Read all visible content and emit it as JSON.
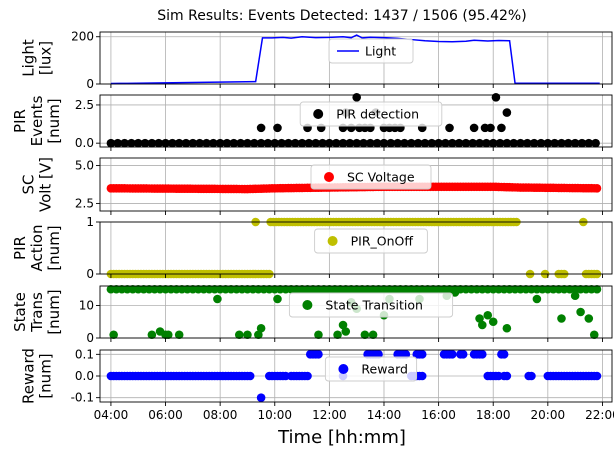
{
  "figure": {
    "title": "Sim Results: Events Detected: 1437 / 1506 (95.42%)",
    "xlabel": "Time [hh:mm]"
  },
  "chart_data": [
    {
      "type": "line",
      "ylabel": [
        "Light",
        "[lux]"
      ],
      "ylim": [
        0,
        220
      ],
      "yticks": [
        0,
        200
      ],
      "xlim": [
        3.6,
        22.35
      ],
      "grid": true,
      "legend": "top-center",
      "series": [
        {
          "name": "Light",
          "color": "#0000ff",
          "x": [
            4.0,
            9.3,
            9.55,
            9.9,
            10.3,
            10.6,
            11.0,
            11.5,
            12.0,
            12.5,
            12.8,
            13.0,
            13.2,
            13.5,
            14.0,
            14.5,
            15.0,
            15.5,
            16.0,
            16.5,
            17.0,
            17.3,
            17.8,
            18.2,
            18.6,
            18.8,
            21.9
          ],
          "values": [
            2,
            10,
            195,
            195,
            197,
            194,
            200,
            196,
            197,
            200,
            196,
            207,
            195,
            198,
            196,
            193,
            188,
            183,
            180,
            179,
            181,
            185,
            182,
            184,
            183,
            3,
            3
          ]
        }
      ]
    },
    {
      "type": "scatter",
      "ylabel": [
        "PIR",
        "Events",
        "[num]"
      ],
      "ylim": [
        -0.25,
        3.15
      ],
      "yticks": [
        0.0,
        2.5
      ],
      "tick_format": "1f",
      "xlim": [
        3.6,
        22.35
      ],
      "grid": true,
      "legend": "top-center",
      "series": [
        {
          "name": "PIR detection",
          "color": "#000000",
          "x": [
            9.5,
            10.1,
            11.2,
            11.7,
            12.5,
            12.6,
            12.8,
            13.0,
            13.1,
            13.3,
            13.5,
            13.7,
            14.0,
            14.2,
            14.4,
            14.6,
            15.4,
            16.4,
            17.3,
            17.7,
            17.9,
            18.1,
            18.3,
            18.5
          ],
          "values": [
            1,
            1,
            1,
            1,
            1,
            2,
            1,
            3,
            1,
            1,
            1,
            2,
            1,
            1,
            1,
            1,
            1,
            1,
            1,
            1,
            1,
            3,
            1,
            2
          ],
          "baseline": {
            "value": 0,
            "from": 4.0,
            "to": 21.8,
            "step": 0.25
          }
        }
      ]
    },
    {
      "type": "scatter",
      "ylabel": [
        "SC",
        "Volt [V]"
      ],
      "ylim": [
        2.0,
        5.5
      ],
      "yticks": [
        2.5,
        5.0
      ],
      "tick_format": "1f",
      "xlim": [
        3.6,
        22.35
      ],
      "grid": true,
      "legend": "top-center",
      "series": [
        {
          "name": "SC Voltage",
          "color": "#ff0000",
          "profile_x": [
            4.0,
            9.0,
            10.0,
            12.0,
            14.0,
            16.0,
            18.0,
            19.0,
            21.8
          ],
          "profile_y": [
            3.5,
            3.45,
            3.5,
            3.55,
            3.6,
            3.6,
            3.6,
            3.55,
            3.5
          ],
          "sample_from": 4.0,
          "sample_to": 21.8,
          "sample_step": 0.1
        }
      ]
    },
    {
      "type": "scatter",
      "ylabel": [
        "PIR",
        "Action",
        "[num]"
      ],
      "ylim": [
        0,
        1.0
      ],
      "yticks": [
        0,
        1
      ],
      "tick_format": "0f",
      "xlim": [
        3.6,
        22.35
      ],
      "grid": true,
      "legend": "top-center",
      "series": [
        {
          "name": "PIR_OnOff",
          "color": "#bfbf00",
          "segments": [
            {
              "from": 4.0,
              "to": 9.8,
              "step": 0.1,
              "value": 0
            },
            {
              "from": 9.3,
              "to": 9.3,
              "step": 0.1,
              "value": 1
            },
            {
              "from": 9.85,
              "to": 18.9,
              "step": 0.1,
              "value": 1
            },
            {
              "from": 19.35,
              "to": 19.35,
              "step": 0.1,
              "value": 0
            },
            {
              "from": 19.9,
              "to": 19.9,
              "step": 0.1,
              "value": 0
            },
            {
              "from": 20.4,
              "to": 20.6,
              "step": 0.1,
              "value": 0
            },
            {
              "from": 21.3,
              "to": 21.3,
              "step": 0.1,
              "value": 1
            },
            {
              "from": 21.4,
              "to": 21.8,
              "step": 0.1,
              "value": 0
            }
          ]
        }
      ]
    },
    {
      "type": "scatter",
      "ylabel": [
        "State",
        "Trans",
        "[num]"
      ],
      "ylim": [
        0,
        16
      ],
      "yticks": [
        0,
        10
      ],
      "tick_format": "0f",
      "xlim": [
        3.6,
        22.35
      ],
      "grid": true,
      "legend": "top-center",
      "series": [
        {
          "name": "State Transition",
          "color": "#008000",
          "dense": {
            "from": 4.0,
            "to": 21.8,
            "step": 0.2,
            "value": 15
          },
          "x": [
            4.1,
            5.5,
            5.8,
            6.0,
            6.1,
            6.5,
            7.9,
            8.7,
            9.0,
            9.4,
            9.5,
            10.1,
            11.6,
            12.3,
            12.5,
            12.6,
            12.8,
            13.0,
            13.3,
            13.6,
            14.0,
            14.2,
            15.3,
            16.3,
            16.6,
            17.5,
            17.6,
            17.8,
            18.0,
            18.5,
            19.6,
            20.5,
            21.0,
            21.2,
            21.5,
            21.7
          ],
          "values": [
            1,
            1,
            2,
            1,
            1,
            1,
            12,
            1,
            1,
            1,
            3,
            12,
            1,
            1,
            4,
            2,
            11,
            9,
            1,
            1,
            7,
            12,
            12,
            13,
            14,
            6,
            4,
            7,
            5,
            3,
            12,
            6,
            13,
            8,
            6,
            1
          ]
        }
      ]
    },
    {
      "type": "scatter",
      "ylabel": [
        "Reward",
        "[num]"
      ],
      "ylim": [
        -0.12,
        0.12
      ],
      "yticks": [
        -0.1,
        0.0,
        0.1
      ],
      "tick_format": "1f",
      "xlim": [
        3.6,
        22.35
      ],
      "grid": true,
      "legend": "top-center",
      "series": [
        {
          "name": "Reward",
          "color": "#0000ff",
          "segments": [
            {
              "from": 4.0,
              "to": 9.1,
              "step": 0.1,
              "value": 0
            },
            {
              "from": 9.5,
              "to": 9.5,
              "step": 0.1,
              "value": -0.1
            },
            {
              "from": 9.8,
              "to": 10.4,
              "step": 0.1,
              "value": 0
            },
            {
              "from": 10.6,
              "to": 11.2,
              "step": 0.1,
              "value": 0
            },
            {
              "from": 11.3,
              "to": 11.6,
              "step": 0.1,
              "value": 0.1
            },
            {
              "from": 12.5,
              "to": 12.5,
              "step": 0.1,
              "value": 0
            },
            {
              "from": 13.4,
              "to": 13.8,
              "step": 0.1,
              "value": 0.1
            },
            {
              "from": 14.5,
              "to": 14.8,
              "step": 0.1,
              "value": 0.1
            },
            {
              "from": 15.0,
              "to": 15.4,
              "step": 0.1,
              "value": 0
            },
            {
              "from": 15.2,
              "to": 15.4,
              "step": 0.1,
              "value": 0.1
            },
            {
              "from": 16.2,
              "to": 16.5,
              "step": 0.1,
              "value": 0.1
            },
            {
              "from": 16.8,
              "to": 16.9,
              "step": 0.1,
              "value": 0.1
            },
            {
              "from": 17.3,
              "to": 17.6,
              "step": 0.1,
              "value": 0.1
            },
            {
              "from": 18.3,
              "to": 18.4,
              "step": 0.1,
              "value": 0.1
            },
            {
              "from": 17.8,
              "to": 18.2,
              "step": 0.1,
              "value": 0
            },
            {
              "from": 18.4,
              "to": 18.5,
              "step": 0.1,
              "value": 0
            },
            {
              "from": 19.3,
              "to": 19.4,
              "step": 0.1,
              "value": 0
            },
            {
              "from": 20.0,
              "to": 21.8,
              "step": 0.1,
              "value": 0
            }
          ]
        }
      ]
    }
  ],
  "x_axis": {
    "ticks": [
      4,
      6,
      8,
      10,
      12,
      14,
      16,
      18,
      20,
      22
    ],
    "tick_labels": [
      "04:00",
      "06:00",
      "08:00",
      "10:00",
      "12:00",
      "14:00",
      "16:00",
      "18:00",
      "20:00",
      "22:00"
    ]
  }
}
